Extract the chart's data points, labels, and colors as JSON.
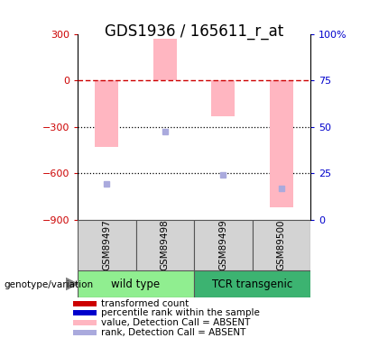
{
  "title": "GDS1936 / 165611_r_at",
  "samples": [
    "GSM89497",
    "GSM89498",
    "GSM89499",
    "GSM89500"
  ],
  "group_ranges": [
    {
      "name": "wild type",
      "xmin": -0.5,
      "xmax": 1.5,
      "color": "#90EE90"
    },
    {
      "name": "TCR transgenic",
      "xmin": 1.5,
      "xmax": 3.5,
      "color": "#3CB371"
    }
  ],
  "bar_values": [
    -430,
    270,
    -230,
    -820
  ],
  "bar_color": "#FFB6C1",
  "rank_values": [
    -670,
    -330,
    -610,
    -700
  ],
  "rank_color": "#AAAADD",
  "ylim_left": [
    -900,
    300
  ],
  "ylim_right": [
    0,
    100
  ],
  "yticks_left": [
    -900,
    -600,
    -300,
    0,
    300
  ],
  "yticks_right": [
    0,
    25,
    50,
    75,
    100
  ],
  "hline_y": 0,
  "hline_color": "#CC0000",
  "dotted_lines": [
    -300,
    -600
  ],
  "dotted_color": "black",
  "left_tick_color": "#CC0000",
  "right_tick_color": "#0000CC",
  "title_fontsize": 12,
  "tick_fontsize": 8,
  "legend_items": [
    {
      "label": "transformed count",
      "color": "#CC0000"
    },
    {
      "label": "percentile rank within the sample",
      "color": "#0000CC"
    },
    {
      "label": "value, Detection Call = ABSENT",
      "color": "#FFB6C1"
    },
    {
      "label": "rank, Detection Call = ABSENT",
      "color": "#AAAADD"
    }
  ],
  "bar_width": 0.4,
  "sample_bg_color": "#D3D3D3",
  "sample_edge_color": "#555555"
}
